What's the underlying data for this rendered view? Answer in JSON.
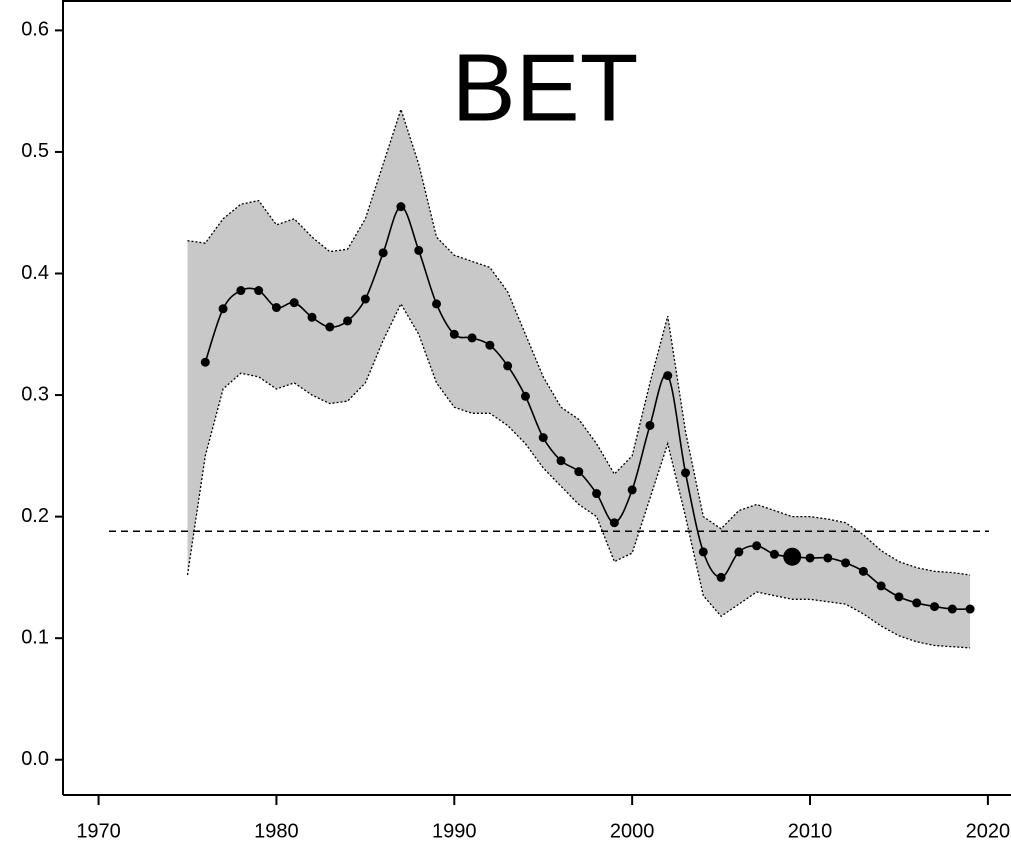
{
  "chart_data": {
    "type": "line",
    "title": "BET",
    "x": [
      1975,
      1976,
      1977,
      1978,
      1979,
      1980,
      1981,
      1982,
      1983,
      1984,
      1985,
      1986,
      1987,
      1988,
      1989,
      1990,
      1991,
      1992,
      1993,
      1994,
      1995,
      1996,
      1997,
      1998,
      1999,
      2000,
      2001,
      2002,
      2003,
      2004,
      2005,
      2006,
      2007,
      2008,
      2009,
      2010,
      2011,
      2012,
      2013,
      2014,
      2015,
      2016,
      2017,
      2018,
      2019
    ],
    "values": [
      null,
      0.327,
      0.371,
      0.386,
      0.386,
      0.372,
      0.376,
      0.364,
      0.356,
      0.361,
      0.379,
      0.417,
      0.455,
      0.419,
      0.375,
      0.35,
      0.347,
      0.341,
      0.324,
      0.299,
      0.265,
      0.246,
      0.237,
      0.219,
      0.195,
      0.222,
      0.275,
      0.316,
      0.236,
      0.171,
      0.15,
      0.171,
      0.176,
      0.169,
      0.167,
      0.166,
      0.166,
      0.162,
      0.155,
      0.143,
      0.134,
      0.129,
      0.126,
      0.124,
      0.124
    ],
    "upper": [
      0.427,
      0.425,
      0.445,
      0.457,
      0.46,
      0.44,
      0.445,
      0.43,
      0.418,
      0.42,
      0.445,
      0.49,
      0.535,
      0.49,
      0.43,
      0.415,
      0.41,
      0.405,
      0.385,
      0.35,
      0.315,
      0.29,
      0.28,
      0.26,
      0.235,
      0.25,
      0.31,
      0.365,
      0.27,
      0.2,
      0.19,
      0.205,
      0.21,
      0.205,
      0.2,
      0.2,
      0.198,
      0.195,
      0.185,
      0.172,
      0.163,
      0.158,
      0.155,
      0.154,
      0.152
    ],
    "lower": [
      0.152,
      0.25,
      0.305,
      0.318,
      0.315,
      0.305,
      0.31,
      0.3,
      0.293,
      0.295,
      0.31,
      0.345,
      0.375,
      0.35,
      0.31,
      0.29,
      0.285,
      0.285,
      0.275,
      0.26,
      0.24,
      0.225,
      0.21,
      0.2,
      0.163,
      0.17,
      0.215,
      0.26,
      0.2,
      0.135,
      0.118,
      0.128,
      0.138,
      0.135,
      0.132,
      0.132,
      0.13,
      0.128,
      0.12,
      0.11,
      0.102,
      0.097,
      0.094,
      0.093,
      0.092
    ],
    "highlight_x": 2009,
    "reference_line": 0.188,
    "color": "#000000",
    "band_color": "#c8c8c8",
    "xlim": [
      1968,
      2021.3
    ],
    "ylim": [
      -0.029,
      0.625
    ],
    "xticks": [
      1970,
      1980,
      1990,
      2000,
      2010,
      2020
    ],
    "yticks": [
      {
        "value": 0,
        "label": "0.0"
      },
      0.1,
      0.2,
      0.3,
      0.4,
      0.5,
      0.6
    ]
  }
}
